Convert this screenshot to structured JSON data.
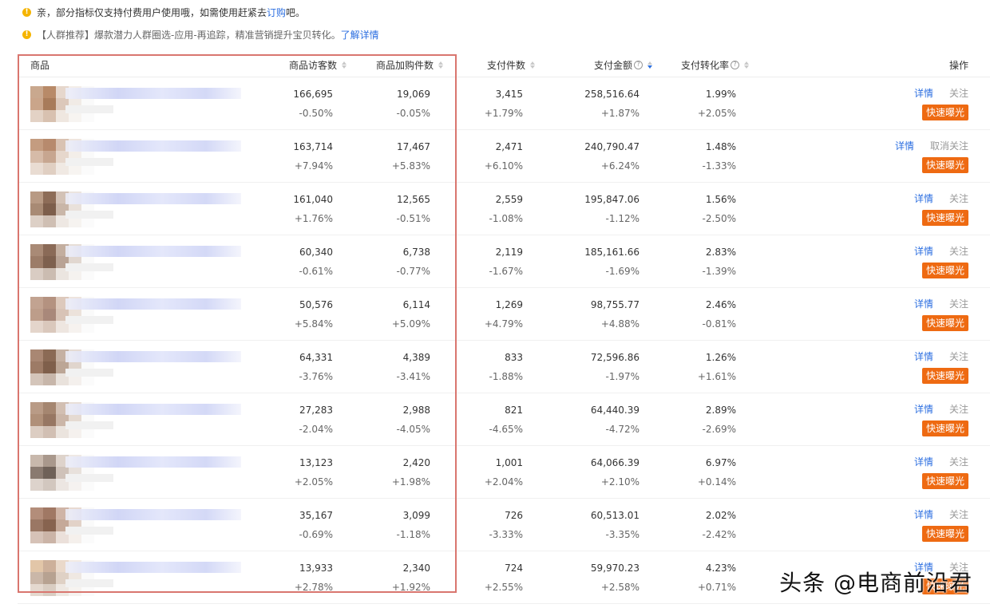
{
  "notices": [
    {
      "text": "亲，部分指标仅支持付费用户使用哦，如需使用赶紧去",
      "link": "订购",
      "suffix": "吧。"
    },
    {
      "text": "【人群推荐】爆款潜力人群圈选-应用-再追踪，精准营销提升宝贝转化。",
      "link": "了解详情",
      "suffix": ""
    }
  ],
  "columns": {
    "product": "商品",
    "visitors": "商品访客数",
    "cart": "商品加购件数",
    "pay_qty": "支付件数",
    "pay_amt": "支付金额",
    "conv": "支付转化率",
    "ops": "操作"
  },
  "help_glyph": "?",
  "warn_glyph": "!",
  "ops": {
    "detail": "详情",
    "follow": "关注",
    "unfollow": "取消关注",
    "expose": "快速曝光"
  },
  "rows": [
    {
      "visitors": "166,695",
      "visitors_pct": "-0.50%",
      "cart": "19,069",
      "cart_pct": "-0.05%",
      "pay_qty": "3,415",
      "pay_qty_pct": "+1.79%",
      "pay_amt": "258,516.64",
      "pay_amt_pct": "+1.87%",
      "conv": "1.99%",
      "conv_pct": "+2.05%",
      "follow": "关注"
    },
    {
      "visitors": "163,714",
      "visitors_pct": "+7.94%",
      "cart": "17,467",
      "cart_pct": "+5.83%",
      "pay_qty": "2,471",
      "pay_qty_pct": "+6.10%",
      "pay_amt": "240,790.47",
      "pay_amt_pct": "+6.24%",
      "conv": "1.48%",
      "conv_pct": "-1.33%",
      "follow": "取消关注"
    },
    {
      "visitors": "161,040",
      "visitors_pct": "+1.76%",
      "cart": "12,565",
      "cart_pct": "-0.51%",
      "pay_qty": "2,559",
      "pay_qty_pct": "-1.08%",
      "pay_amt": "195,847.06",
      "pay_amt_pct": "-1.12%",
      "conv": "1.56%",
      "conv_pct": "-2.50%",
      "follow": "关注"
    },
    {
      "visitors": "60,340",
      "visitors_pct": "-0.61%",
      "cart": "6,738",
      "cart_pct": "-0.77%",
      "pay_qty": "2,119",
      "pay_qty_pct": "-1.67%",
      "pay_amt": "185,161.66",
      "pay_amt_pct": "-1.69%",
      "conv": "2.83%",
      "conv_pct": "-1.39%",
      "follow": "关注"
    },
    {
      "visitors": "50,576",
      "visitors_pct": "+5.84%",
      "cart": "6,114",
      "cart_pct": "+5.09%",
      "pay_qty": "1,269",
      "pay_qty_pct": "+4.79%",
      "pay_amt": "98,755.77",
      "pay_amt_pct": "+4.88%",
      "conv": "2.46%",
      "conv_pct": "-0.81%",
      "follow": "关注"
    },
    {
      "visitors": "64,331",
      "visitors_pct": "-3.76%",
      "cart": "4,389",
      "cart_pct": "-3.41%",
      "pay_qty": "833",
      "pay_qty_pct": "-1.88%",
      "pay_amt": "72,596.86",
      "pay_amt_pct": "-1.97%",
      "conv": "1.26%",
      "conv_pct": "+1.61%",
      "follow": "关注"
    },
    {
      "visitors": "27,283",
      "visitors_pct": "-2.04%",
      "cart": "2,988",
      "cart_pct": "-4.05%",
      "pay_qty": "821",
      "pay_qty_pct": "-4.65%",
      "pay_amt": "64,440.39",
      "pay_amt_pct": "-4.72%",
      "conv": "2.89%",
      "conv_pct": "-2.69%",
      "follow": "关注"
    },
    {
      "visitors": "13,123",
      "visitors_pct": "+2.05%",
      "cart": "2,420",
      "cart_pct": "+1.98%",
      "pay_qty": "1,001",
      "pay_qty_pct": "+2.04%",
      "pay_amt": "64,066.39",
      "pay_amt_pct": "+2.10%",
      "conv": "6.97%",
      "conv_pct": "+0.14%",
      "follow": "关注"
    },
    {
      "visitors": "35,167",
      "visitors_pct": "-0.69%",
      "cart": "3,099",
      "cart_pct": "-1.18%",
      "pay_qty": "726",
      "pay_qty_pct": "-3.33%",
      "pay_amt": "60,513.01",
      "pay_amt_pct": "-3.35%",
      "conv": "2.02%",
      "conv_pct": "-2.42%",
      "follow": "关注"
    },
    {
      "visitors": "13,933",
      "visitors_pct": "+2.78%",
      "cart": "2,340",
      "cart_pct": "+1.92%",
      "pay_qty": "724",
      "pay_qty_pct": "+2.55%",
      "pay_amt": "59,970.23",
      "pay_amt_pct": "+2.58%",
      "conv": "4.23%",
      "conv_pct": "+0.71%",
      "follow": "关注"
    }
  ],
  "thumb_palettes": [
    [
      "#c9a88e",
      "#b88a68",
      "#e6d7cc",
      "#f4eee9",
      "#fafafa",
      "#caa58a",
      "#a87b5a",
      "#dcc8ba",
      "#f1ebe6",
      "#fafafa",
      "#e3d2c5",
      "#d8c1b0",
      "#efe7e0",
      "#f7f4f1",
      "#fbfbfb"
    ],
    [
      "#c49c80",
      "#b78a6d",
      "#d9c2b2",
      "#efe6df",
      "#fafafa",
      "#d6bba8",
      "#c7a690",
      "#e6d7cc",
      "#f3eee9",
      "#fafafa",
      "#e9dcd2",
      "#e0cfc2",
      "#f0e9e3",
      "#f7f4f1",
      "#fbfbfb"
    ],
    [
      "#b89a84",
      "#8d6c57",
      "#d3c2b6",
      "#ece5df",
      "#fafafa",
      "#a88a74",
      "#7d5e4b",
      "#c9b6a8",
      "#e9e1db",
      "#fafafa",
      "#ddd0c6",
      "#cfbfb3",
      "#eee8e3",
      "#f6f3f0",
      "#fbfbfb"
    ],
    [
      "#a98a76",
      "#8a6a57",
      "#c3ae9f",
      "#e7ded7",
      "#fafafa",
      "#9c7c68",
      "#7e604e",
      "#b9a395",
      "#e1d7d0",
      "#fafafa",
      "#d9ccc3",
      "#cbbcb1",
      "#ebe5e0",
      "#f5f2ef",
      "#fbfbfb"
    ],
    [
      "#c2a391",
      "#b49280",
      "#ddc9bc",
      "#eee4de",
      "#fafafa",
      "#bd9d8a",
      "#a9887a",
      "#d8c3b6",
      "#ece2db",
      "#fafafa",
      "#e4d5cb",
      "#dac8bc",
      "#eee6e0",
      "#f6f2ef",
      "#fbfbfb"
    ],
    [
      "#a98773",
      "#8b6a55",
      "#c5b1a3",
      "#e5dbd4",
      "#fafafa",
      "#9d7b66",
      "#7f5f4b",
      "#bca696",
      "#e0d5cd",
      "#fafafa",
      "#d4c5ba",
      "#c7b6aa",
      "#e9e2dc",
      "#f4f0ed",
      "#fbfbfb"
    ],
    [
      "#b99b86",
      "#a58670",
      "#d2bfb2",
      "#e9dfd8",
      "#fafafa",
      "#b09079",
      "#977763",
      "#cbb6a8",
      "#e5dad2",
      "#fafafa",
      "#dccdc2",
      "#d1bfb3",
      "#ebe4de",
      "#f5f1ee",
      "#fbfbfb"
    ],
    [
      "#c8b8ac",
      "#a9988c",
      "#ded3cb",
      "#efe9e5",
      "#fafafa",
      "#8a7a70",
      "#6f6158",
      "#cfc2b9",
      "#e8e1dc",
      "#fafafa",
      "#ddd3cc",
      "#d2c7bf",
      "#ece6e2",
      "#f5f2f0",
      "#fbfbfb"
    ],
    [
      "#b38d7a",
      "#a07864",
      "#cfb4a6",
      "#e8dad2",
      "#fafafa",
      "#9a7764",
      "#87634f",
      "#c5a999",
      "#e2d2c8",
      "#fafafa",
      "#d6c2b7",
      "#cbb4a7",
      "#ebe0da",
      "#f5f0ec",
      "#fbfbfb"
    ],
    [
      "#e2c6a8",
      "#cdb09a",
      "#ead9ca",
      "#f3ebe4",
      "#fafafa",
      "#cab7a8",
      "#b7a291",
      "#dfd1c5",
      "#efe8e2",
      "#fafafa",
      "#e4d9cf",
      "#d9cdc2",
      "#eee8e2",
      "#f6f3f0",
      "#fbfbfb"
    ]
  ],
  "watermark": "头条 @电商前沿君",
  "colors": {
    "accent_link": "#2b6ee0",
    "expose_btn": "#ee6a12",
    "highlight_border": "#d9766f",
    "warn": "#f5b400"
  }
}
